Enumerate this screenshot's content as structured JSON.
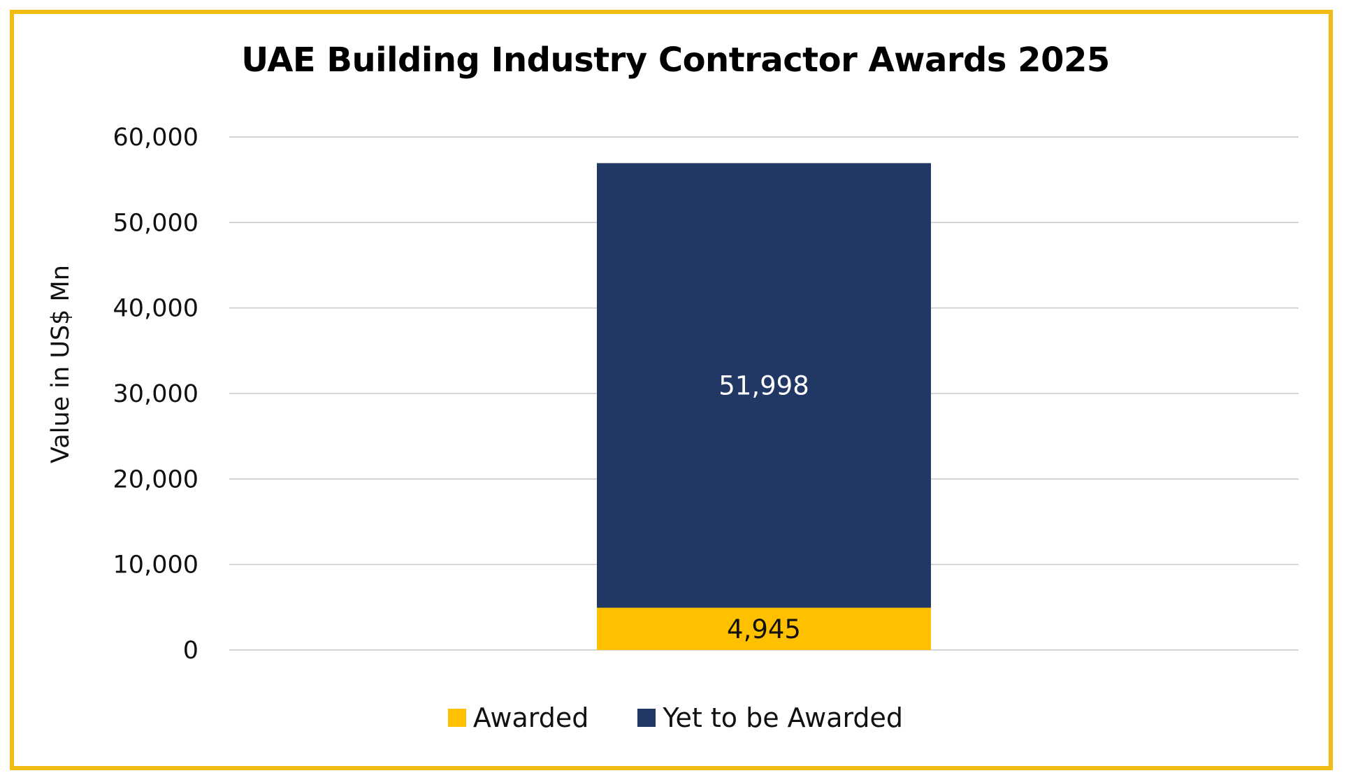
{
  "chart_data": {
    "type": "bar",
    "stacked": true,
    "title": "UAE Building Industry Contractor Awards 2025",
    "xlabel": "",
    "ylabel": "Value in US$ Mn",
    "ylim": [
      0,
      60000
    ],
    "yticks": [
      0,
      10000,
      20000,
      30000,
      40000,
      50000,
      60000
    ],
    "ytick_labels": [
      "0",
      "10,000",
      "20,000",
      "30,000",
      "40,000",
      "50,000",
      "60,000"
    ],
    "grid": true,
    "legend_position": "bottom",
    "categories": [
      ""
    ],
    "series": [
      {
        "name": "Awarded",
        "values": [
          4945
        ],
        "labels": [
          "4,945"
        ],
        "color": "#ffc000",
        "label_color": "#111111"
      },
      {
        "name": "Yet to be Awarded",
        "values": [
          51998
        ],
        "labels": [
          "51,998"
        ],
        "color": "#223864",
        "label_color": "#ffffff"
      }
    ]
  },
  "frame_color": "#f2bd12"
}
